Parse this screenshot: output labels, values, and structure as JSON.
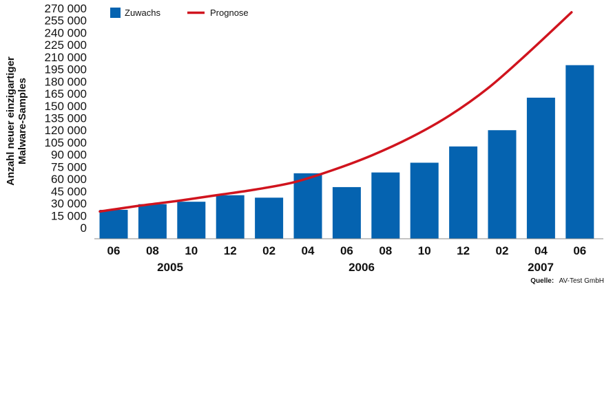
{
  "chart_data": {
    "type": "bar",
    "categories": [
      "06",
      "08",
      "10",
      "12",
      "02",
      "04",
      "06",
      "08",
      "10",
      "12",
      "02",
      "04",
      "06"
    ],
    "year_groups": [
      {
        "label": "2005",
        "start": 0,
        "end": 3
      },
      {
        "label": "2006",
        "start": 4,
        "end": 9
      },
      {
        "label": "2007",
        "start": 10,
        "end": 12
      }
    ],
    "series": [
      {
        "name": "Zuwachs",
        "type": "bar",
        "color": "#0563b0",
        "values": [
          22000,
          29000,
          32000,
          40000,
          37000,
          67000,
          50000,
          68000,
          80000,
          100000,
          120000,
          160000,
          200000
        ]
      },
      {
        "name": "Prognose",
        "type": "line",
        "color": "#d0141e",
        "values": [
          20000,
          27000,
          33000,
          40000,
          47000,
          56000,
          71000,
          89000,
          111000,
          138000,
          172000,
          214000,
          265000
        ]
      }
    ],
    "yticks": [
      "0",
      "15 000",
      "30 000",
      "45 000",
      "60 000",
      "75 000",
      "90 000",
      "105 000",
      "120 000",
      "135 000",
      "150 000",
      "165 000",
      "180 000",
      "195 000",
      "210 000",
      "225 000",
      "240 000",
      "255 000",
      "270 000"
    ],
    "ylim": [
      0,
      270000
    ],
    "ylabel_lines": [
      "Anzahl neuer einzigartiger",
      "Malware-Samples"
    ],
    "legend_position": "top-left",
    "grid": false,
    "source_label": "Quelle:",
    "source_value": "AV-Test GmbH"
  }
}
